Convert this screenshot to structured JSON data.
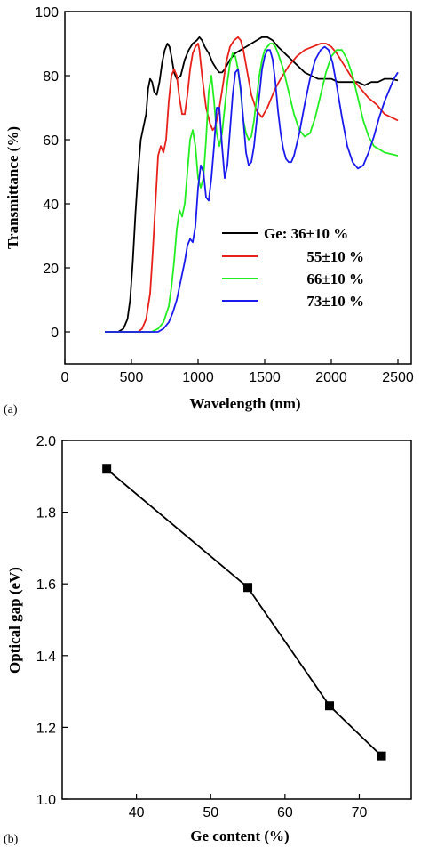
{
  "chart_data": [
    {
      "panel_label": "(a)",
      "type": "line",
      "xlabel": "Wavelength (nm)",
      "ylabel": "Transmittance (%)",
      "xlim": [
        0,
        2600
      ],
      "ylim": [
        -10,
        100
      ],
      "xticks": [
        0,
        500,
        1000,
        1500,
        2000,
        2500
      ],
      "yticks": [
        0,
        20,
        40,
        60,
        80,
        100
      ],
      "grid": false,
      "legend_position": "lower-right",
      "series": [
        {
          "name": "Ge: 36±10 %",
          "color": "#000000",
          "x": [
            300,
            400,
            440,
            470,
            490,
            510,
            530,
            550,
            570,
            590,
            610,
            625,
            640,
            655,
            670,
            690,
            710,
            730,
            750,
            770,
            785,
            800,
            820,
            840,
            870,
            900,
            930,
            960,
            990,
            1010,
            1030,
            1050,
            1080,
            1110,
            1140,
            1160,
            1180,
            1200,
            1240,
            1280,
            1320,
            1360,
            1400,
            1440,
            1480,
            1520,
            1560,
            1600,
            1650,
            1700,
            1750,
            1800,
            1850,
            1900,
            1950,
            2000,
            2050,
            2100,
            2150,
            2200,
            2250,
            2300,
            2350,
            2400,
            2450,
            2500
          ],
          "y": [
            0,
            0,
            1,
            4,
            10,
            22,
            37,
            50,
            60,
            64,
            68,
            76,
            79,
            78,
            75,
            74,
            78,
            84,
            88,
            90,
            89,
            86,
            81,
            79,
            80,
            85,
            88,
            90,
            91,
            92,
            91,
            89,
            87,
            84,
            82,
            81,
            81,
            82,
            85,
            87,
            88,
            89,
            90,
            91,
            92,
            92,
            91,
            89,
            87,
            85,
            83,
            81,
            80,
            79,
            79,
            79,
            78,
            78,
            78,
            78,
            77,
            78,
            78,
            79,
            79,
            78.5
          ]
        },
        {
          "name": "55±10 %",
          "color": "#e8201a",
          "x": [
            300,
            550,
            580,
            610,
            640,
            660,
            680,
            700,
            720,
            740,
            760,
            780,
            800,
            820,
            840,
            860,
            880,
            900,
            920,
            940,
            960,
            980,
            1000,
            1010,
            1030,
            1060,
            1090,
            1110,
            1130,
            1160,
            1190,
            1210,
            1240,
            1270,
            1300,
            1320,
            1340,
            1370,
            1400,
            1440,
            1480,
            1520,
            1550,
            1580,
            1620,
            1680,
            1740,
            1800,
            1860,
            1920,
            1960,
            2000,
            2040,
            2100,
            2160,
            2220,
            2280,
            2340,
            2400,
            2450,
            2500
          ],
          "y": [
            0,
            0,
            1,
            4,
            12,
            25,
            40,
            55,
            58,
            56,
            60,
            72,
            80,
            82,
            80,
            73,
            68,
            68,
            74,
            82,
            87,
            89,
            90,
            88,
            80,
            70,
            65,
            63,
            64,
            70,
            78,
            84,
            89,
            91,
            92,
            91,
            88,
            81,
            74,
            69,
            67,
            70,
            73,
            76,
            79,
            83,
            86,
            88,
            89,
            90,
            90,
            89,
            87,
            83,
            79,
            76,
            73,
            71,
            68,
            67,
            66
          ]
        },
        {
          "name": "66±10 %",
          "color": "#22ee22",
          "x": [
            300,
            650,
            700,
            740,
            780,
            800,
            820,
            840,
            860,
            880,
            900,
            920,
            940,
            960,
            980,
            1000,
            1020,
            1040,
            1060,
            1080,
            1100,
            1120,
            1140,
            1160,
            1180,
            1200,
            1220,
            1240,
            1260,
            1280,
            1300,
            1320,
            1340,
            1360,
            1380,
            1400,
            1420,
            1440,
            1460,
            1480,
            1500,
            1520,
            1540,
            1560,
            1580,
            1600,
            1640,
            1680,
            1720,
            1760,
            1800,
            1840,
            1880,
            1920,
            1960,
            2000,
            2040,
            2080,
            2120,
            2160,
            2200,
            2240,
            2280,
            2320,
            2360,
            2400,
            2450,
            2500
          ],
          "y": [
            0,
            0,
            1,
            3,
            8,
            14,
            22,
            32,
            38,
            36,
            40,
            50,
            60,
            63,
            58,
            48,
            45,
            48,
            60,
            75,
            80,
            72,
            62,
            58,
            62,
            70,
            78,
            84,
            87,
            86,
            82,
            75,
            66,
            62,
            60,
            61,
            66,
            73,
            80,
            85,
            88,
            89,
            90,
            90,
            89,
            87,
            82,
            75,
            68,
            63,
            61,
            62,
            67,
            74,
            81,
            86,
            88,
            88,
            85,
            80,
            73,
            66,
            61,
            58,
            57,
            56,
            55.5,
            55
          ]
        },
        {
          "name": "73±10 %",
          "color": "#1a1aee",
          "x": [
            300,
            700,
            740,
            780,
            810,
            840,
            860,
            880,
            900,
            920,
            940,
            960,
            980,
            1000,
            1020,
            1040,
            1060,
            1080,
            1100,
            1120,
            1140,
            1160,
            1180,
            1200,
            1220,
            1240,
            1260,
            1280,
            1300,
            1320,
            1340,
            1360,
            1380,
            1400,
            1420,
            1440,
            1460,
            1480,
            1500,
            1520,
            1540,
            1560,
            1580,
            1600,
            1620,
            1640,
            1660,
            1680,
            1700,
            1720,
            1760,
            1800,
            1840,
            1880,
            1920,
            1950,
            1980,
            2010,
            2040,
            2080,
            2120,
            2160,
            2200,
            2240,
            2280,
            2320,
            2360,
            2400,
            2440,
            2470,
            2500
          ],
          "y": [
            0,
            0,
            1,
            3,
            6,
            10,
            14,
            18,
            22,
            27,
            29,
            28,
            33,
            45,
            52,
            50,
            42,
            41,
            48,
            58,
            70,
            70,
            58,
            48,
            52,
            63,
            74,
            81,
            82,
            76,
            66,
            56,
            52,
            53,
            58,
            66,
            74,
            82,
            86,
            88,
            88,
            85,
            78,
            69,
            62,
            57,
            54,
            53,
            53,
            55,
            62,
            71,
            79,
            85,
            88,
            89,
            88,
            84,
            77,
            67,
            58,
            53,
            51,
            52,
            56,
            61,
            67,
            72,
            76,
            79,
            81
          ]
        }
      ]
    },
    {
      "panel_label": "(b)",
      "type": "line",
      "markers": "square",
      "xlabel": "Ge content (%)",
      "ylabel": "Optical gap (eV)",
      "xlim": [
        30,
        77
      ],
      "ylim": [
        1.0,
        2.0
      ],
      "xticks": [
        40,
        50,
        60,
        70
      ],
      "yticks": [
        "1.0",
        "1.2",
        "1.4",
        "1.6",
        "1.8",
        "2.0"
      ],
      "grid": false,
      "series": [
        {
          "color": "#000000",
          "x": [
            36,
            55,
            66,
            73
          ],
          "y": [
            1.92,
            1.59,
            1.26,
            1.12
          ]
        }
      ]
    }
  ]
}
